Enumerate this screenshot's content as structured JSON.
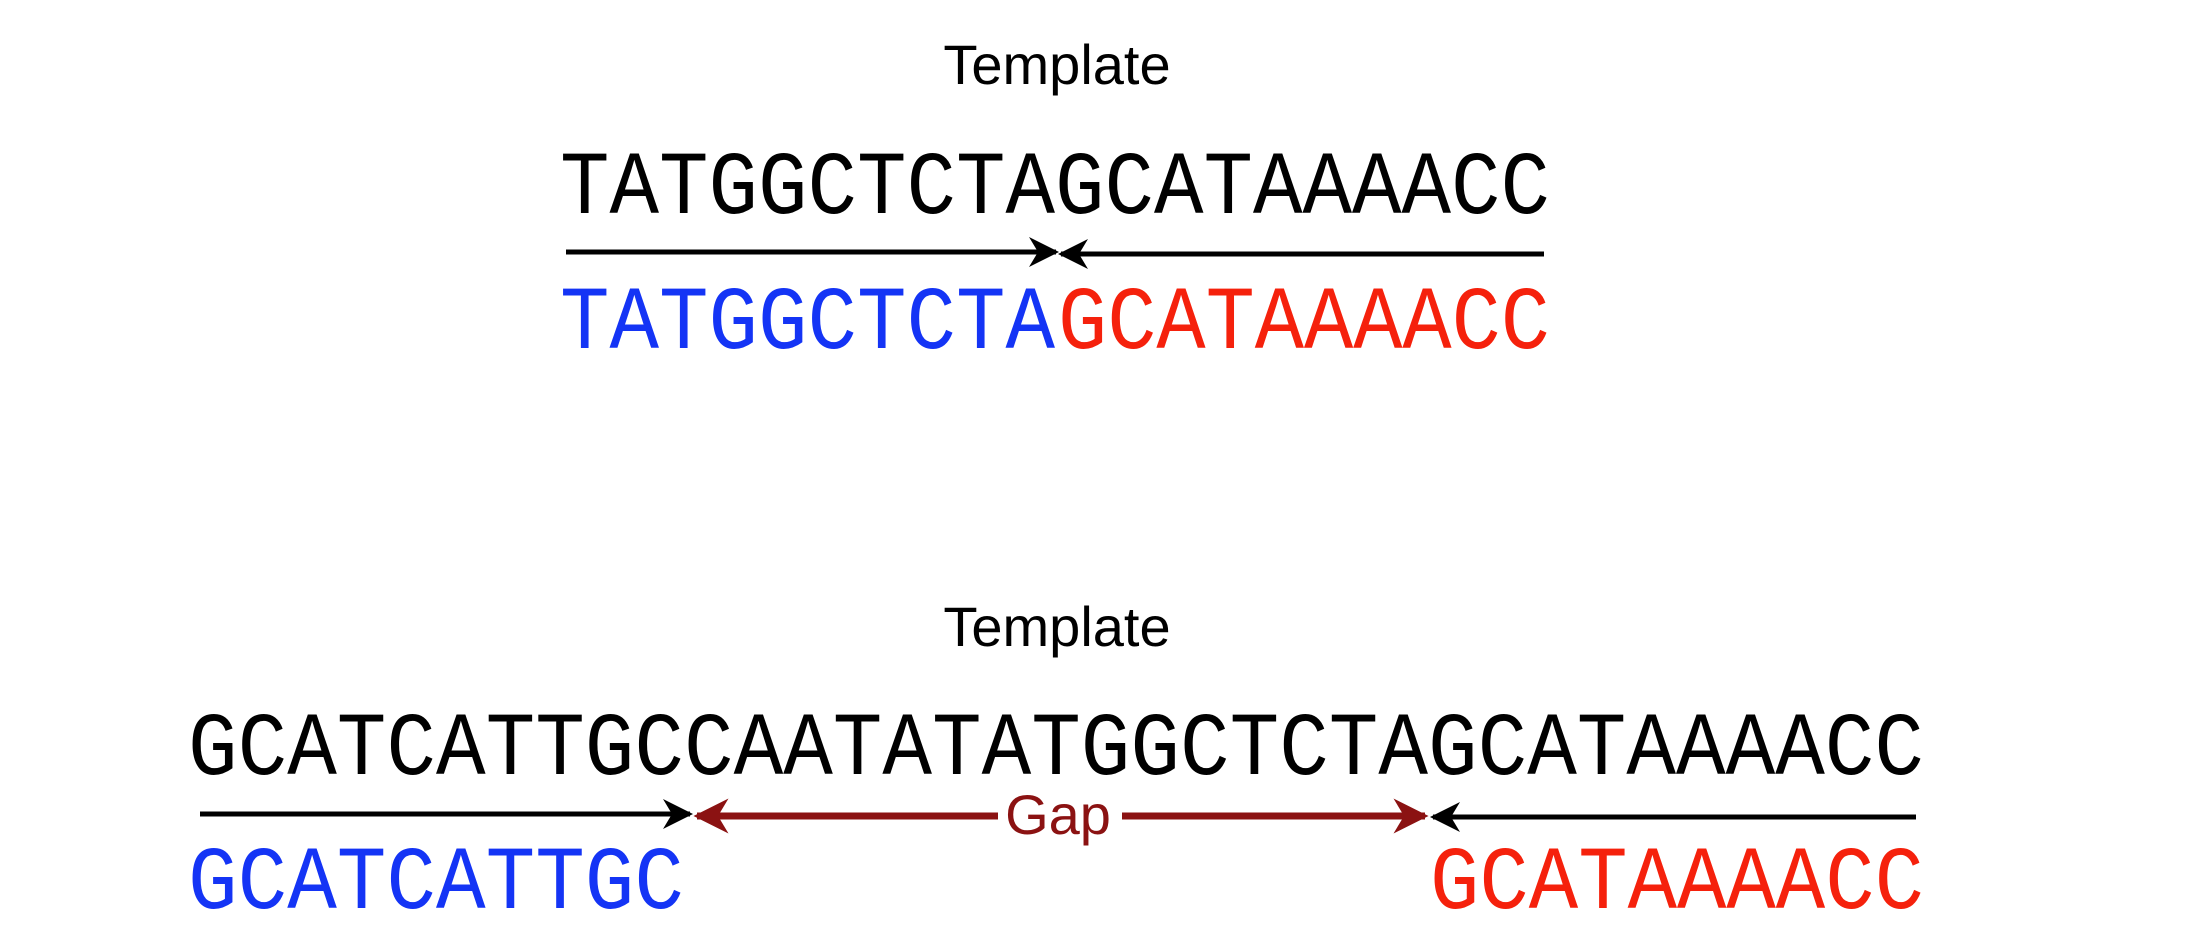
{
  "colors": {
    "template": "#000000",
    "left_fragment": "#1434f5",
    "right_fragment": "#f5210c",
    "gap": "#8b1212",
    "arrow": "#000000"
  },
  "panel1": {
    "title": "Template",
    "template_seq": "TATGGCTCTAGCATAAAACC",
    "left_fragment": "TATGGCTCTA",
    "right_fragment": "GCATAAAACC"
  },
  "panel2": {
    "title": "Template",
    "template_seq": "GCATCATTGCCAATATATGGCTCTAGCATAAAACC",
    "left_fragment": "GCATCATTGC",
    "right_fragment": "GCATAAAACC",
    "gap_label": "Gap"
  }
}
